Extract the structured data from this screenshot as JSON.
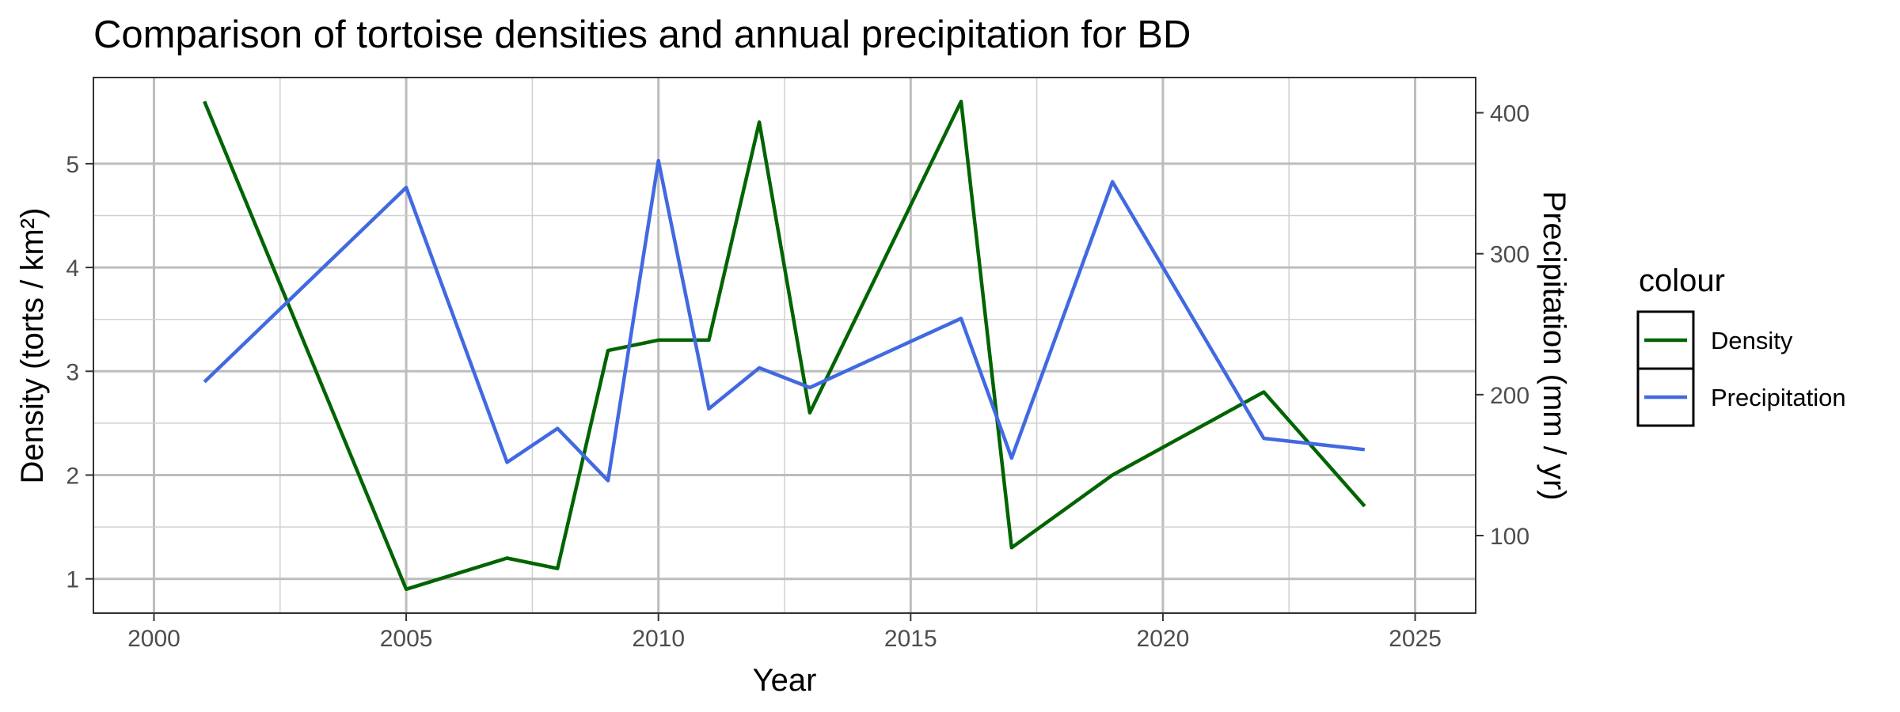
{
  "chart_data": {
    "type": "line",
    "title": "Comparison of tortoise densities and annual precipitation for BD",
    "xlabel": "Year",
    "ylabel": "Density (torts / km²)",
    "y2label": "Precipitation (mm / yr)",
    "xlim": [
      1998.8,
      2026.2
    ],
    "ylim": [
      0.67,
      5.83
    ],
    "y2lim": [
      45,
      425
    ],
    "x_ticks": [
      2000,
      2005,
      2010,
      2015,
      2020,
      2025
    ],
    "y_ticks": [
      1,
      2,
      3,
      4,
      5
    ],
    "y2_ticks": [
      100,
      200,
      300,
      400
    ],
    "grid": true,
    "legend": {
      "title": "colour",
      "placement": "right",
      "entries": [
        "Density",
        "Precipitation"
      ]
    },
    "series": [
      {
        "name": "Density",
        "axis": "left",
        "color": "#006400",
        "x": [
          2001,
          2005,
          2007,
          2008,
          2009,
          2010,
          2011,
          2012,
          2013,
          2016,
          2017,
          2019,
          2022,
          2024
        ],
        "values": [
          5.6,
          0.9,
          1.2,
          1.1,
          3.2,
          3.3,
          3.3,
          5.4,
          2.6,
          5.6,
          1.3,
          2.0,
          2.8,
          1.7
        ]
      },
      {
        "name": "Precipitation",
        "axis": "right",
        "color": "#4169E1",
        "x": [
          2001,
          2005,
          2007,
          2008,
          2009,
          2010,
          2011,
          2012,
          2013,
          2016,
          2017,
          2019,
          2022,
          2024
        ],
        "values": [
          209,
          347,
          152,
          176,
          139,
          366,
          190,
          219,
          205,
          254,
          155,
          351,
          169,
          161
        ]
      }
    ]
  }
}
